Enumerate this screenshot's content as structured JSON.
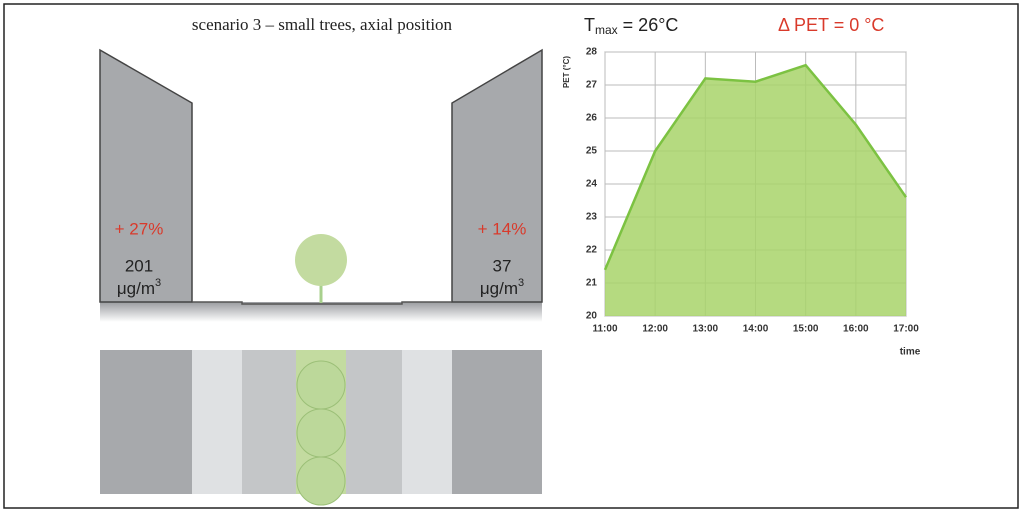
{
  "scenario_title": "scenario 3 – small trees, axial position",
  "tmax": {
    "symbol": "T",
    "subscript": "max",
    "text": " = 26°C"
  },
  "delta_pet": "Δ PET = 0 °C",
  "left_building": {
    "change": "+ 27%",
    "concentration": "201",
    "unit": "μg/m",
    "unit_sup": "3"
  },
  "right_building": {
    "change": "+ 14%",
    "concentration": "37",
    "unit": "μg/m",
    "unit_sup": "3"
  },
  "chart_data": {
    "type": "area",
    "y_label": "PET (°C)",
    "x_label": "time",
    "categories": [
      "11:00",
      "12:00",
      "13:00",
      "14:00",
      "15:00",
      "16:00",
      "17:00"
    ],
    "values": [
      21.4,
      25.0,
      27.2,
      27.1,
      27.6,
      25.8,
      23.6
    ],
    "color": "#a8d46a",
    "line_color": "#7cc242",
    "ylim": [
      20,
      28
    ],
    "yticks": [
      20,
      21,
      22,
      23,
      24,
      25,
      26,
      27,
      28
    ],
    "grid": true
  }
}
